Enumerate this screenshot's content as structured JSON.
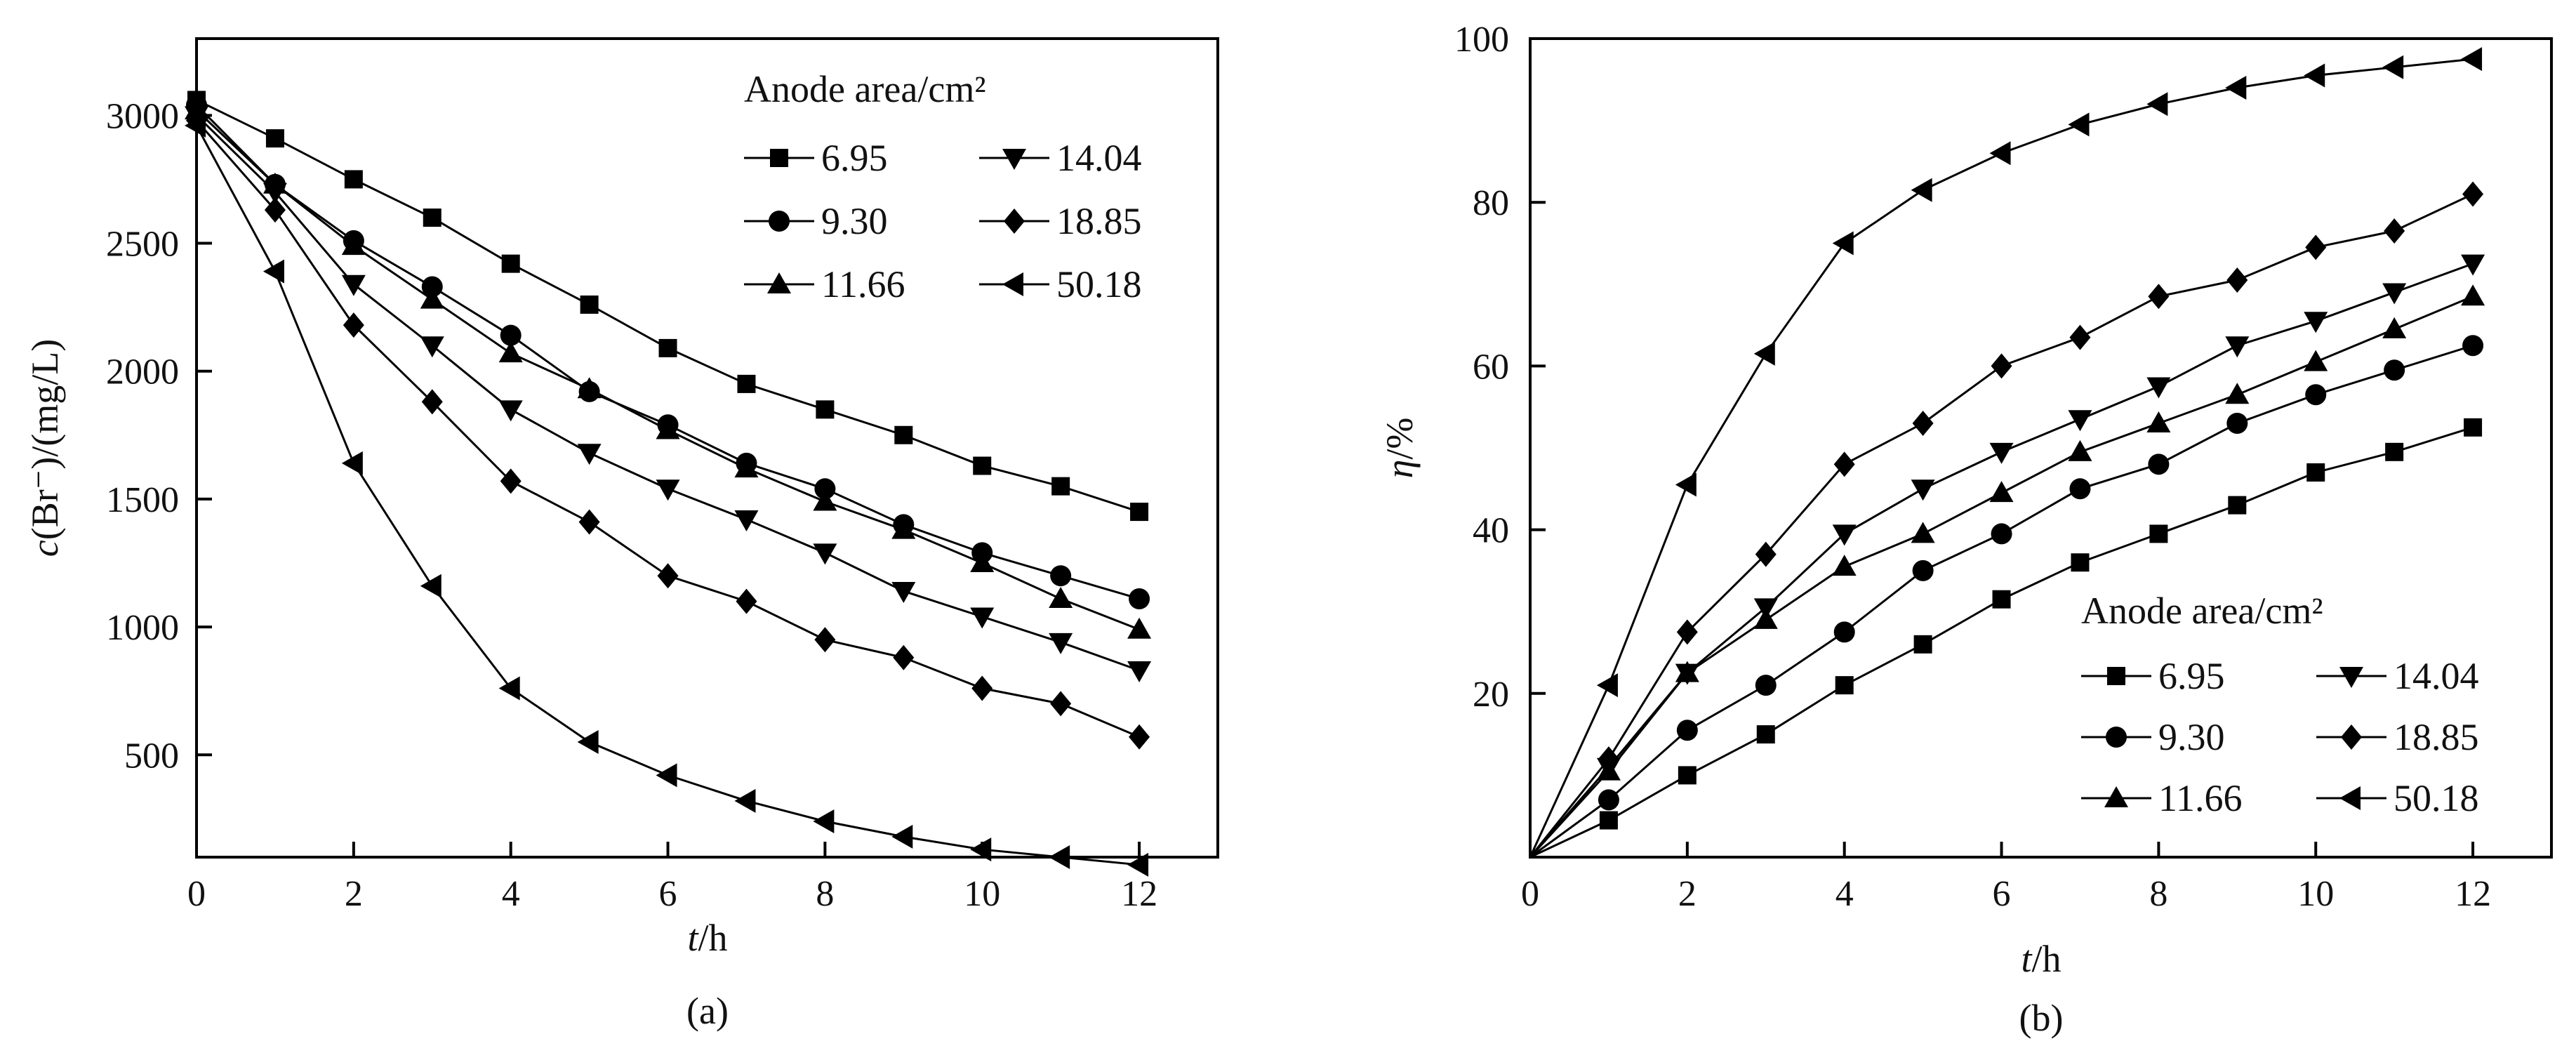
{
  "figure": {
    "labels": [
      "(a)",
      "(b)"
    ]
  },
  "chart_data": [
    {
      "type": "line",
      "panel": "(a)",
      "title": "",
      "xlabel_italic": "t",
      "xlabel_rest": "/h",
      "ylabel": "c(Br⁻)/(mg/L)",
      "ylabel_italic": "c",
      "ylabel_rest": "(Br⁻)/(mg/L)",
      "xlim": [
        0,
        13
      ],
      "ylim": [
        100,
        3300
      ],
      "xticks": [
        0,
        2,
        4,
        6,
        8,
        10,
        12
      ],
      "yticks": [
        500,
        1000,
        1500,
        2000,
        2500,
        3000
      ],
      "x_tick_labels": [
        "0",
        "2",
        "4",
        "6",
        "8",
        "10",
        "12"
      ],
      "y_tick_labels": [
        "500",
        "1000",
        "1500",
        "2000",
        "2500",
        "3000"
      ],
      "legend_title": "Anode area/cm²",
      "legend_position": "top-right",
      "x": [
        0,
        1,
        2,
        3,
        4,
        5,
        6,
        7,
        8,
        9,
        10,
        11,
        12
      ],
      "series": [
        {
          "name": "6.95",
          "marker": "square",
          "values": [
            3060,
            2910,
            2750,
            2600,
            2420,
            2260,
            2090,
            1950,
            1850,
            1750,
            1630,
            1550,
            1450
          ]
        },
        {
          "name": "9.30",
          "marker": "circle",
          "values": [
            3040,
            2730,
            2510,
            2330,
            2140,
            1920,
            1790,
            1640,
            1540,
            1400,
            1290,
            1200,
            1110
          ]
        },
        {
          "name": "11.66",
          "marker": "triangle-up",
          "values": [
            3020,
            2730,
            2490,
            2280,
            2070,
            1930,
            1770,
            1620,
            1490,
            1380,
            1250,
            1110,
            990
          ]
        },
        {
          "name": "14.04",
          "marker": "triangle-down",
          "values": [
            3000,
            2700,
            2340,
            2100,
            1850,
            1680,
            1540,
            1420,
            1290,
            1140,
            1040,
            940,
            830
          ]
        },
        {
          "name": "18.85",
          "marker": "diamond",
          "values": [
            2980,
            2630,
            2180,
            1880,
            1570,
            1410,
            1200,
            1100,
            950,
            880,
            760,
            700,
            570
          ]
        },
        {
          "name": "50.18",
          "marker": "triangle-left",
          "values": [
            2960,
            2390,
            1640,
            1160,
            760,
            550,
            420,
            320,
            240,
            180,
            130,
            100,
            70
          ]
        }
      ]
    },
    {
      "type": "line",
      "panel": "(b)",
      "title": "",
      "xlabel_italic": "t",
      "xlabel_rest": "/h",
      "ylabel": "η/%",
      "ylabel_italic": "η",
      "ylabel_rest": "/%",
      "xlim": [
        0,
        13
      ],
      "ylim": [
        0,
        100
      ],
      "xticks": [
        0,
        2,
        4,
        6,
        8,
        10,
        12
      ],
      "yticks": [
        0,
        20,
        40,
        60,
        80,
        100
      ],
      "x_tick_labels": [
        "0",
        "2",
        "4",
        "6",
        "8",
        "10",
        "12"
      ],
      "y_tick_labels": [
        "20",
        "40",
        "60",
        "80",
        "100"
      ],
      "legend_title": "Anode area/cm²",
      "legend_position": "bottom-right",
      "x": [
        0,
        1,
        2,
        3,
        4,
        5,
        6,
        7,
        8,
        9,
        10,
        11,
        12
      ],
      "series": [
        {
          "name": "6.95",
          "marker": "square",
          "values": [
            0,
            4.5,
            10,
            15,
            21,
            26,
            31.5,
            36,
            39.5,
            43,
            47,
            49.5,
            52.5
          ]
        },
        {
          "name": "9.30",
          "marker": "circle",
          "values": [
            0,
            7,
            15.5,
            21,
            27.5,
            35,
            39.5,
            45,
            48,
            53,
            56.5,
            59.5,
            62.5
          ]
        },
        {
          "name": "11.66",
          "marker": "triangle-up",
          "values": [
            0,
            10.5,
            22.5,
            29,
            35.5,
            39.5,
            44.5,
            49.5,
            53,
            56.5,
            60.5,
            64.5,
            68.5
          ]
        },
        {
          "name": "14.04",
          "marker": "triangle-down",
          "values": [
            0,
            11,
            22.5,
            30.5,
            39.5,
            45,
            49.5,
            53.5,
            57.5,
            62.5,
            65.5,
            69,
            72.5
          ]
        },
        {
          "name": "18.85",
          "marker": "diamond",
          "values": [
            0,
            12,
            27.5,
            37,
            48,
            53,
            60,
            63.5,
            68.5,
            70.5,
            74.5,
            76.5,
            81
          ]
        },
        {
          "name": "50.18",
          "marker": "triangle-left",
          "values": [
            0,
            21,
            45.5,
            61.5,
            75,
            81.5,
            86,
            89.5,
            92,
            94,
            95.5,
            96.5,
            97.5
          ]
        }
      ]
    }
  ]
}
